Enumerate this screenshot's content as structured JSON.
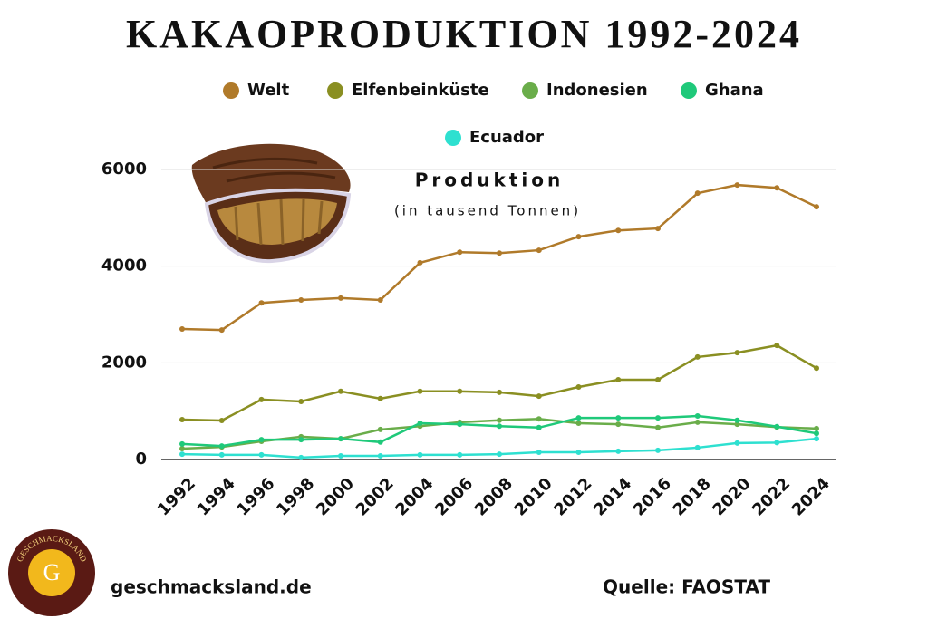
{
  "chart_data": {
    "type": "line",
    "title": "KAKAOPRODUKTION 1992-2024",
    "subtitle": "Produktion",
    "unit_note": "(in tausend Tonnen)",
    "categories": [
      "1992",
      "1994",
      "1996",
      "1998",
      "2000",
      "2002",
      "2004",
      "2006",
      "2008",
      "2010",
      "2012",
      "2014",
      "2016",
      "2018",
      "2020",
      "2022",
      "2024"
    ],
    "series": [
      {
        "name": "Welt",
        "color": "#b07a2a",
        "values": [
          2700,
          2680,
          3240,
          3300,
          3340,
          3300,
          4070,
          4290,
          4270,
          4330,
          4610,
          4740,
          4780,
          5510,
          5680,
          5620,
          5230
        ]
      },
      {
        "name": "Elfenbeinküste",
        "color": "#8a8f22",
        "values": [
          825,
          806,
          1240,
          1200,
          1410,
          1260,
          1410,
          1410,
          1390,
          1310,
          1500,
          1650,
          1650,
          2120,
          2210,
          2360,
          1890
        ]
      },
      {
        "name": "Indonesien",
        "color": "#6aad4a",
        "values": [
          225,
          260,
          375,
          470,
          430,
          620,
          690,
          770,
          810,
          840,
          750,
          730,
          660,
          770,
          730,
          670,
          640
        ]
      },
      {
        "name": "Ghana",
        "color": "#1fc97a",
        "values": [
          320,
          280,
          410,
          410,
          430,
          360,
          750,
          730,
          690,
          660,
          860,
          860,
          860,
          900,
          810,
          680,
          540
        ]
      },
      {
        "name": "Ecuador",
        "color": "#2ee0d0",
        "values": [
          110,
          95,
          95,
          40,
          75,
          75,
          95,
          95,
          110,
          150,
          150,
          170,
          190,
          245,
          340,
          350,
          430
        ]
      }
    ],
    "ylim": [
      0,
      6000
    ],
    "yticks": [
      0,
      2000,
      4000,
      6000
    ],
    "grid": true
  },
  "footer": {
    "website": "geschmacksland.de",
    "source": "Quelle: FAOSTAT",
    "logo_text": "GESCHMACKSLAND",
    "logo_letter": "G"
  }
}
